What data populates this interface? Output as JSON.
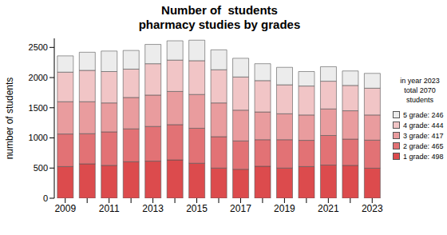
{
  "chart_data": {
    "type": "bar",
    "title": "Number of  students",
    "subtitle": "pharmacy studies by grades",
    "y_label": "number of students",
    "categories": [
      "2009",
      null,
      "2011",
      null,
      "2013",
      null,
      "2015",
      null,
      "2017",
      null,
      "2019",
      null,
      "2021",
      null,
      "2023"
    ],
    "series": [
      {
        "name": "1 grade: 498",
        "color": "#dc4b4d",
        "values": [
          525,
          570,
          545,
          605,
          615,
          635,
          580,
          500,
          480,
          530,
          500,
          525,
          550,
          545,
          498
        ]
      },
      {
        "name": "2 grade: 465",
        "color": "#e27275",
        "values": [
          540,
          500,
          555,
          545,
          575,
          585,
          580,
          520,
          470,
          440,
          470,
          435,
          490,
          435,
          465
        ]
      },
      {
        "name": "3 grade: 417",
        "color": "#e99c9e",
        "values": [
          535,
          530,
          480,
          520,
          520,
          550,
          560,
          560,
          510,
          460,
          430,
          420,
          440,
          470,
          417
        ]
      },
      {
        "name": "4 grade: 444",
        "color": "#f1c5c6",
        "values": [
          490,
          520,
          520,
          470,
          520,
          520,
          560,
          550,
          550,
          520,
          480,
          480,
          460,
          420,
          444
        ]
      },
      {
        "name": "5 grade: 246",
        "color": "#ececec",
        "values": [
          270,
          300,
          340,
          310,
          320,
          320,
          340,
          330,
          310,
          280,
          290,
          240,
          240,
          240,
          246
        ]
      }
    ],
    "annotations": [
      "in year 2023",
      "total 2070",
      "students"
    ],
    "ylim": [
      0,
      2650
    ],
    "yticks": [
      0,
      500,
      1000,
      1500,
      2000,
      2500
    ],
    "stacked": true,
    "grid": false,
    "legend": "right"
  }
}
